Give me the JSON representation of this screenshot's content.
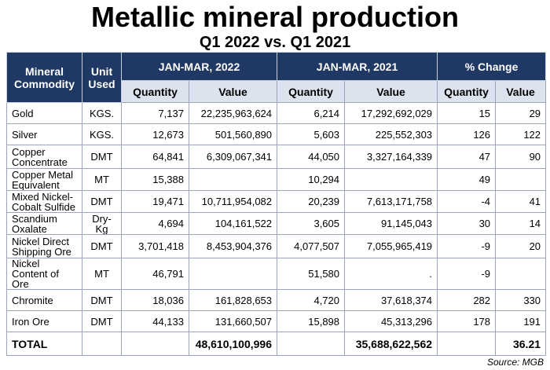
{
  "title": "Metallic mineral production",
  "subtitle": "Q1 2022 vs. Q1 2021",
  "source": "Source: MGB",
  "colors": {
    "header_dark": "#1f3864",
    "header_light": "#dce3ef"
  },
  "chart_data": {
    "type": "table",
    "headers": {
      "mineral": "Mineral Commodity",
      "unit": "Unit Used",
      "period_2022": "JAN-MAR, 2022",
      "period_2021": "JAN-MAR, 2021",
      "change": "% Change",
      "quantity": "Quantity",
      "value": "Value"
    },
    "rows": [
      {
        "name": "Gold",
        "unit": "KGS.",
        "q2022": "7,137",
        "v2022": "22,235,963,624",
        "q2021": "6,214",
        "v2021": "17,292,692,029",
        "pq": "15",
        "pv": "29"
      },
      {
        "name": "Silver",
        "unit": "KGS.",
        "q2022": "12,673",
        "v2022": "501,560,890",
        "q2021": "5,603",
        "v2021": "225,552,303",
        "pq": "126",
        "pv": "122"
      },
      {
        "name": "Copper Concentrate",
        "unit": "DMT",
        "q2022": "64,841",
        "v2022": "6,309,067,341",
        "q2021": "44,050",
        "v2021": "3,327,164,339",
        "pq": "47",
        "pv": "90"
      },
      {
        "name": "Copper Metal Equivalent",
        "unit": "MT",
        "q2022": "15,388",
        "v2022": "",
        "q2021": "10,294",
        "v2021": "",
        "pq": "49",
        "pv": ""
      },
      {
        "name": "Mixed Nickel-Cobalt Sulfide",
        "unit": "DMT",
        "q2022": "19,471",
        "v2022": "10,711,954,082",
        "q2021": "20,239",
        "v2021": "7,613,171,758",
        "pq": "-4",
        "pv": "41"
      },
      {
        "name": "Scandium Oxalate",
        "unit": "Dry-Kg",
        "q2022": "4,694",
        "v2022": "104,161,522",
        "q2021": "3,605",
        "v2021": "91,145,043",
        "pq": "30",
        "pv": "14"
      },
      {
        "name": "Nickel Direct Shipping Ore",
        "unit": "DMT",
        "q2022": "3,701,418",
        "v2022": "8,453,904,376",
        "q2021": "4,077,507",
        "v2021": "7,055,965,419",
        "pq": "-9",
        "pv": "20"
      },
      {
        "name": "Nickel Content of Ore",
        "unit": "MT",
        "q2022": "46,791",
        "v2022": "",
        "q2021": "51,580",
        "v2021": ".",
        "pq": "-9",
        "pv": ""
      },
      {
        "name": "Chromite",
        "unit": "DMT",
        "q2022": "18,036",
        "v2022": "161,828,653",
        "q2021": "4,720",
        "v2021": "37,618,374",
        "pq": "282",
        "pv": "330"
      },
      {
        "name": "Iron Ore",
        "unit": "DMT",
        "q2022": "44,133",
        "v2022": "131,660,507",
        "q2021": "15,898",
        "v2021": "45,313,296",
        "pq": "178",
        "pv": "191"
      }
    ],
    "total": {
      "label": "TOTAL",
      "v2022": "48,610,100,996",
      "v2021": "35,688,622,562",
      "pv": "36.21"
    }
  }
}
